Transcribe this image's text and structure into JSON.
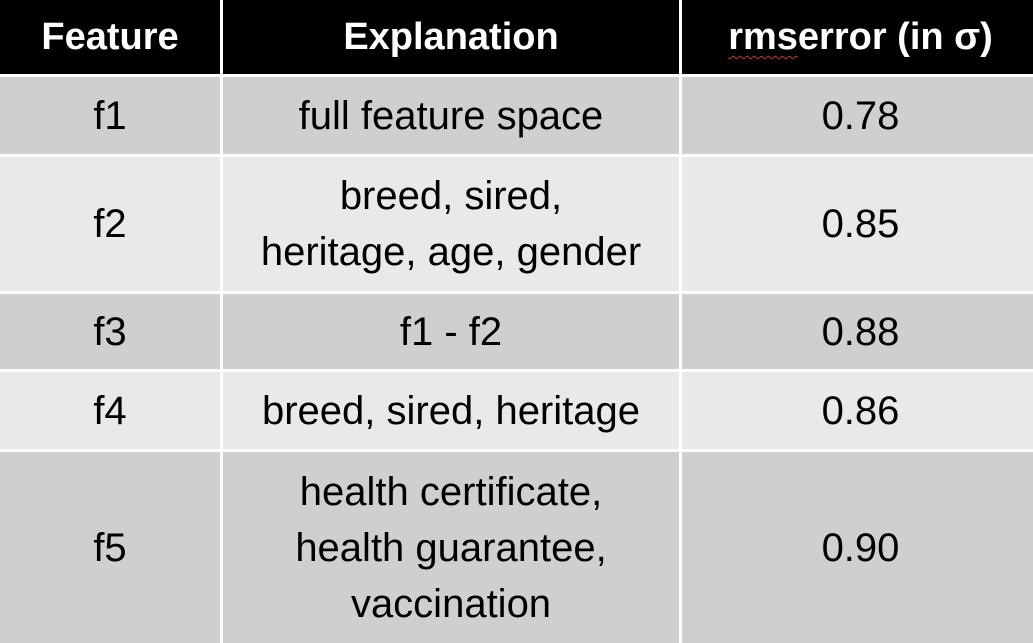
{
  "table": {
    "headers": {
      "feature": "Feature",
      "explanation": "Explanation",
      "rms_word": "rms",
      "rms_rest": " error (in σ)"
    },
    "rows": [
      {
        "feature": "f1",
        "explanation": "full feature space",
        "rms_error": "0.78"
      },
      {
        "feature": "f2",
        "explanation": "breed, sired,\nheritage, age, gender",
        "rms_error": "0.85"
      },
      {
        "feature": "f3",
        "explanation": "f1 - f2",
        "rms_error": "0.88"
      },
      {
        "feature": "f4",
        "explanation": "breed, sired, heritage",
        "rms_error": "0.86"
      },
      {
        "feature": "f5",
        "explanation": "health certificate,\nhealth guarantee,\nvaccination",
        "rms_error": "0.90"
      }
    ]
  },
  "colors": {
    "header_bg": "#000000",
    "header_text": "#ffffff",
    "row_dark": "#cfcfcf",
    "row_light": "#e9e9e9",
    "spellcheck_underline": "#c0392b"
  }
}
